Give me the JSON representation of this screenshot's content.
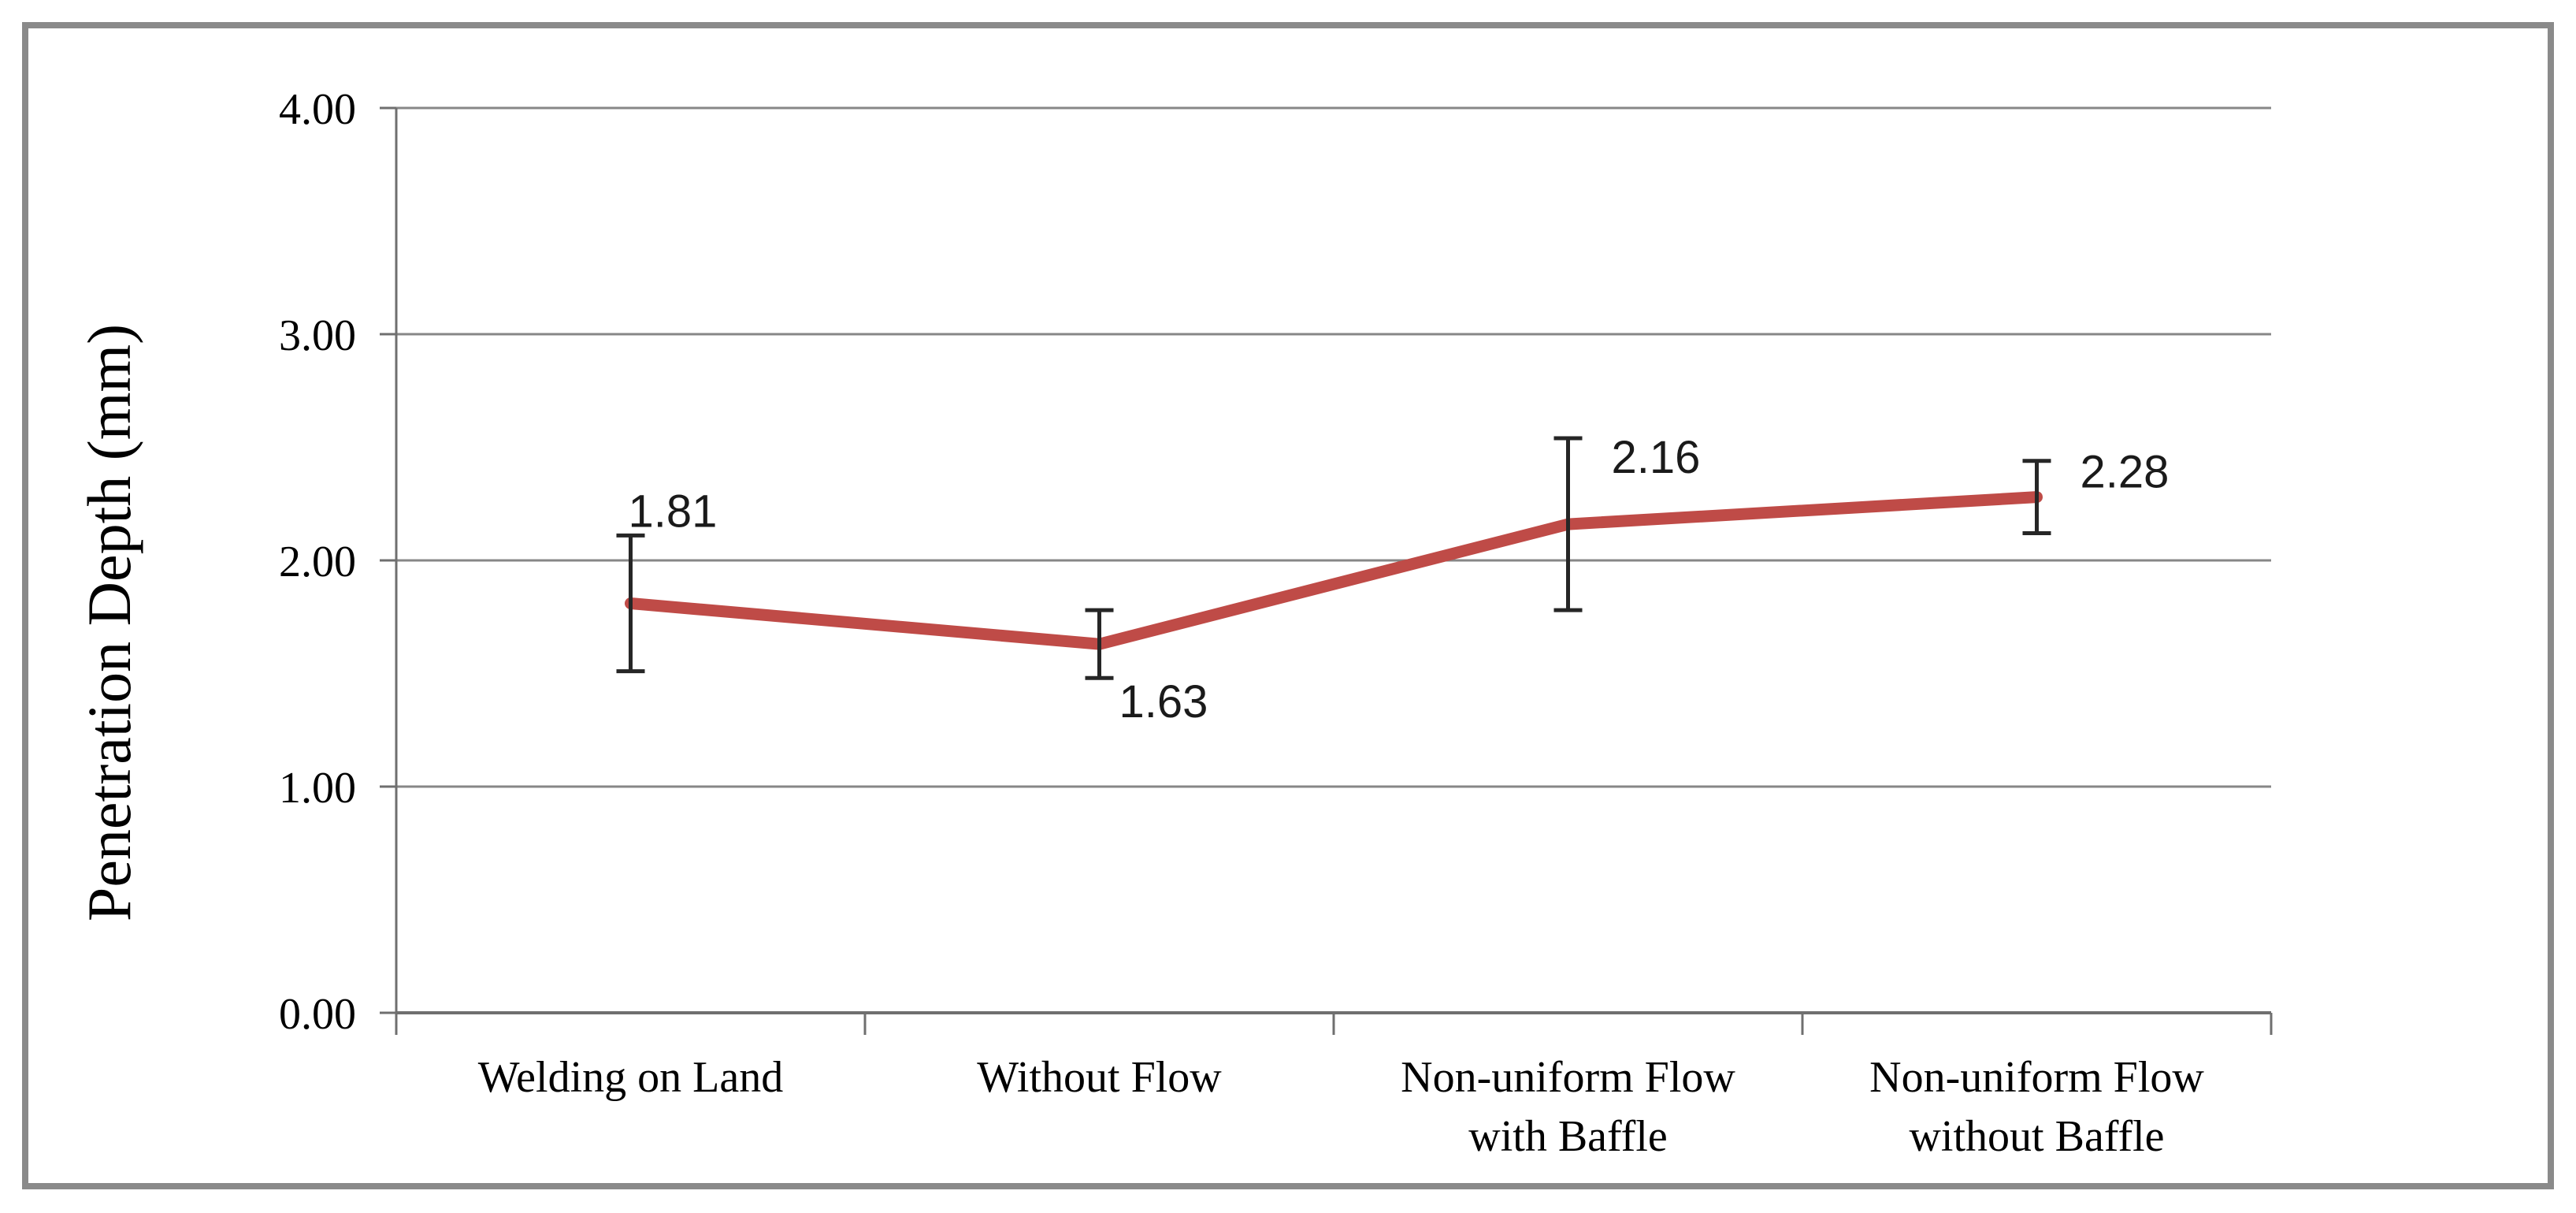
{
  "figure": {
    "background": "#ffffff",
    "border_color": "#8a8a8a"
  },
  "chart_data": {
    "type": "line",
    "title": "",
    "xlabel": "",
    "ylabel": "Penetration Depth (mm)",
    "categories": [
      [
        "Welding on Land"
      ],
      [
        "Without Flow"
      ],
      [
        "Non-uniform Flow",
        "with Baffle"
      ],
      [
        "Non-uniform Flow",
        "without Baffle"
      ]
    ],
    "series": [
      {
        "name": "Penetration Depth (mm)",
        "values": [
          1.81,
          1.63,
          2.16,
          2.28
        ],
        "data_labels": [
          "1.81",
          "1.63",
          "2.16",
          "2.28"
        ],
        "error_plus": [
          0.3,
          0.15,
          0.38,
          0.16
        ],
        "error_minus": [
          0.3,
          0.15,
          0.38,
          0.16
        ],
        "line_color": "#bf4b47"
      }
    ],
    "ylim": [
      0,
      4
    ],
    "ytick_labels": [
      "0.00",
      "1.00",
      "2.00",
      "3.00",
      "4.00"
    ],
    "grid": true,
    "legend": "none",
    "colors": {
      "gridline": "#878787",
      "axis": "#6f6f6f",
      "error_bar": "#262626",
      "text": "#000000"
    }
  }
}
